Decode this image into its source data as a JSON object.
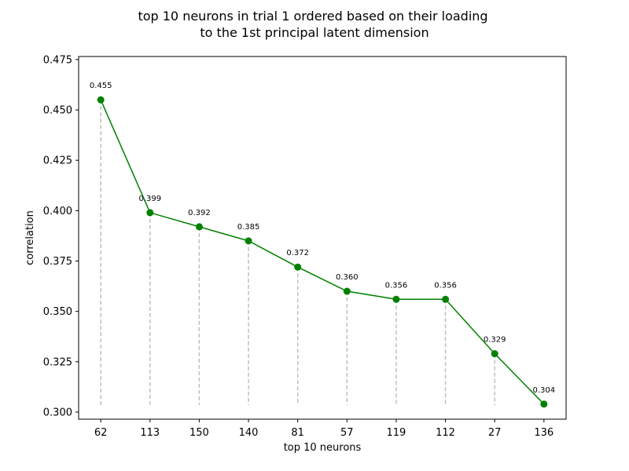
{
  "chart_data": {
    "type": "line",
    "title_line1": "top 10 neurons in trial 1 ordered based on their loading",
    "title_line2": "to the 1st principal latent dimension",
    "xlabel": "top 10 neurons",
    "ylabel": "correlation",
    "categories": [
      "62",
      "113",
      "150",
      "140",
      "81",
      "57",
      "119",
      "112",
      "27",
      "136"
    ],
    "values": [
      0.455,
      0.399,
      0.392,
      0.385,
      0.372,
      0.36,
      0.356,
      0.356,
      0.329,
      0.304
    ],
    "value_labels": [
      "0.455",
      "0.399",
      "0.392",
      "0.385",
      "0.372",
      "0.360",
      "0.356",
      "0.356",
      "0.329",
      "0.304"
    ],
    "stem_bottom": 0.3035,
    "ylim": [
      0.2965,
      0.4765
    ],
    "yticks": [
      0.3,
      0.325,
      0.35,
      0.375,
      0.4,
      0.425,
      0.45,
      0.475
    ],
    "ytick_labels": [
      "0.300",
      "0.325",
      "0.350",
      "0.375",
      "0.400",
      "0.425",
      "0.450",
      "0.475"
    ],
    "grid": false,
    "colors": {
      "line": "#008000",
      "marker": "#008000",
      "stem": "#bfbfbf"
    }
  }
}
